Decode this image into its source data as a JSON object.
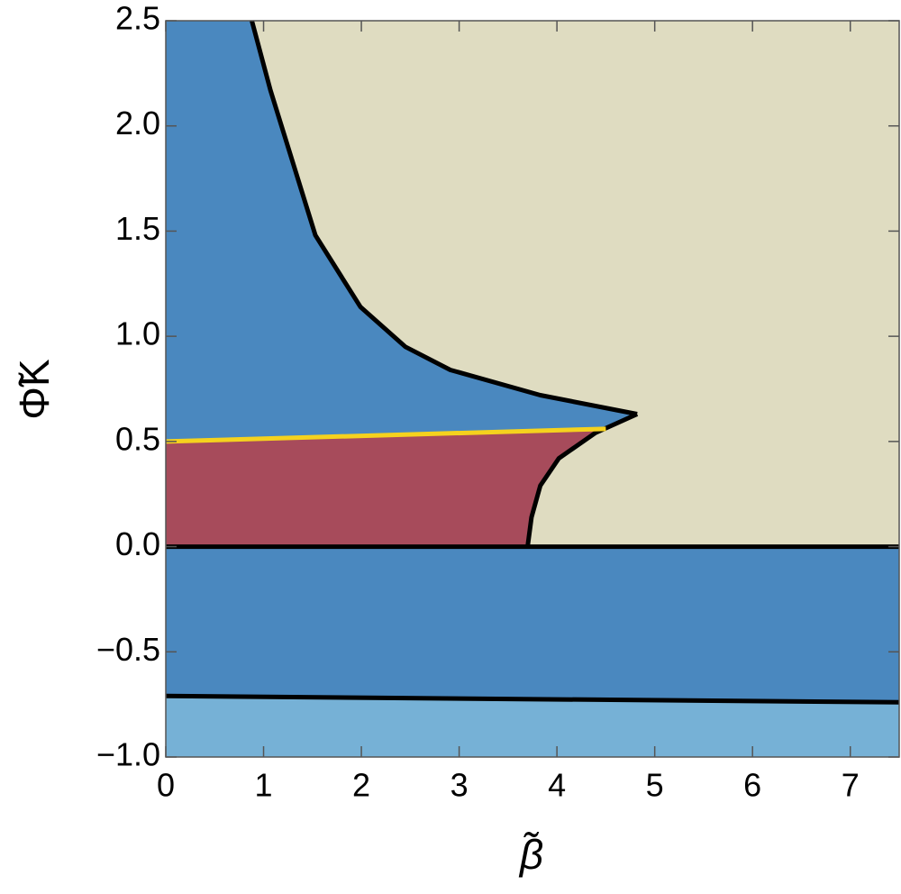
{
  "chart_data": {
    "type": "region",
    "x_label": "β̃",
    "y_label": "Φ̃K",
    "xlim": [
      0,
      7.5
    ],
    "ylim": [
      -1,
      2.5
    ],
    "xticks": [
      0,
      1,
      2,
      3,
      4,
      5,
      6,
      7
    ],
    "yticks": [
      {
        "value": -1,
        "label": "−1.0"
      },
      {
        "value": -0.5,
        "label": "−0.5"
      },
      {
        "value": 0,
        "label": "0.0"
      },
      0.5,
      {
        "value": 1,
        "label": "1.0"
      },
      1.5,
      {
        "value": 2,
        "label": "2.0"
      },
      2.5
    ],
    "region_colors": {
      "background": "#4a88bf",
      "right": "#dfdcc1",
      "lower_left": "#a74b5b",
      "bottom": "#76b1d6"
    },
    "series": [
      {
        "color": "#000000",
        "x": [
          0.88,
          1.07,
          1.53,
          1.99,
          2.45,
          2.91,
          3.83,
          4.82
        ],
        "values": [
          2.5,
          2.17,
          1.48,
          1.14,
          0.95,
          0.84,
          0.72,
          0.63
        ]
      },
      {
        "color": "#000000",
        "x": [
          4.82,
          4.39,
          4.02,
          3.83,
          3.74,
          3.7
        ],
        "values": [
          0.63,
          0.54,
          0.42,
          0.29,
          0.14,
          0
        ]
      },
      {
        "color": "#f5d21e",
        "x": [
          0,
          4.5
        ],
        "values": [
          0.5,
          0.56
        ]
      },
      {
        "color": "#000000",
        "x": [
          0,
          7.5
        ],
        "values": [
          0,
          0
        ]
      },
      {
        "color": "#000000",
        "x": [
          0,
          7.5
        ],
        "values": [
          -0.71,
          -0.74
        ]
      }
    ]
  }
}
